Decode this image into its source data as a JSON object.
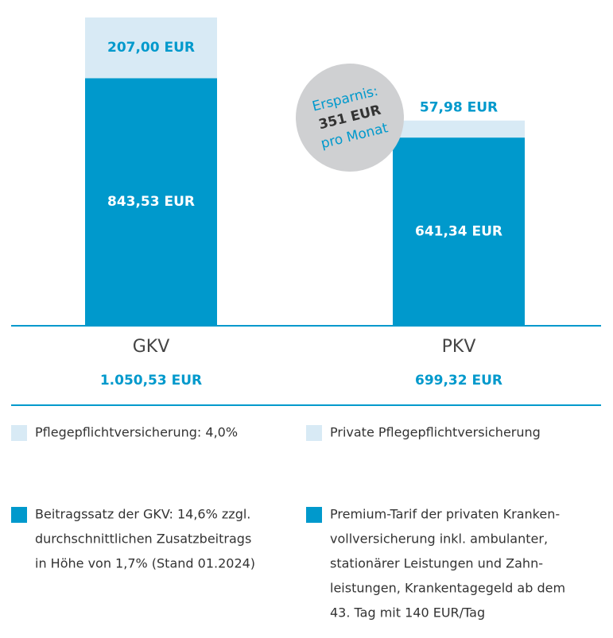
{
  "chart_data": {
    "type": "stacked_bar",
    "categories": [
      "GKV",
      "PKV"
    ],
    "totals": [
      1050.53,
      699.32
    ],
    "total_labels": [
      "1.050,53 EUR",
      "699,32 EUR"
    ],
    "series": [
      {
        "color": "#0099cc",
        "values": [
          843.53,
          641.34
        ],
        "value_labels": [
          "843,53 EUR",
          "641,34 EUR"
        ],
        "legend": [
          [
            "Beitragssatz der GKV: 14,6% zzgl.",
            "durchschnittlichen Zusatzbeitrags",
            "in Höhe von 1,7% (Stand 01.2024)"
          ],
          [
            "Premium-Tarif der privaten Kranken-",
            "vollversicherung inkl. ambulanter,",
            "stationärer Leistungen und Zahn-",
            "leistungen, Krankentagegeld ab dem",
            "43. Tag mit 140 EUR/Tag"
          ]
        ]
      },
      {
        "color": "#d8eaf5",
        "values": [
          207.0,
          57.98
        ],
        "value_labels": [
          "207,00 EUR",
          "57,98 EUR"
        ],
        "legend": [
          [
            "Pflegepflichtversicherung: 4,0%"
          ],
          [
            "Private Pflegepflichtversicherung"
          ]
        ]
      }
    ],
    "annotation": [
      "Ersparnis:",
      "351 EUR",
      "pro Monat"
    ]
  }
}
